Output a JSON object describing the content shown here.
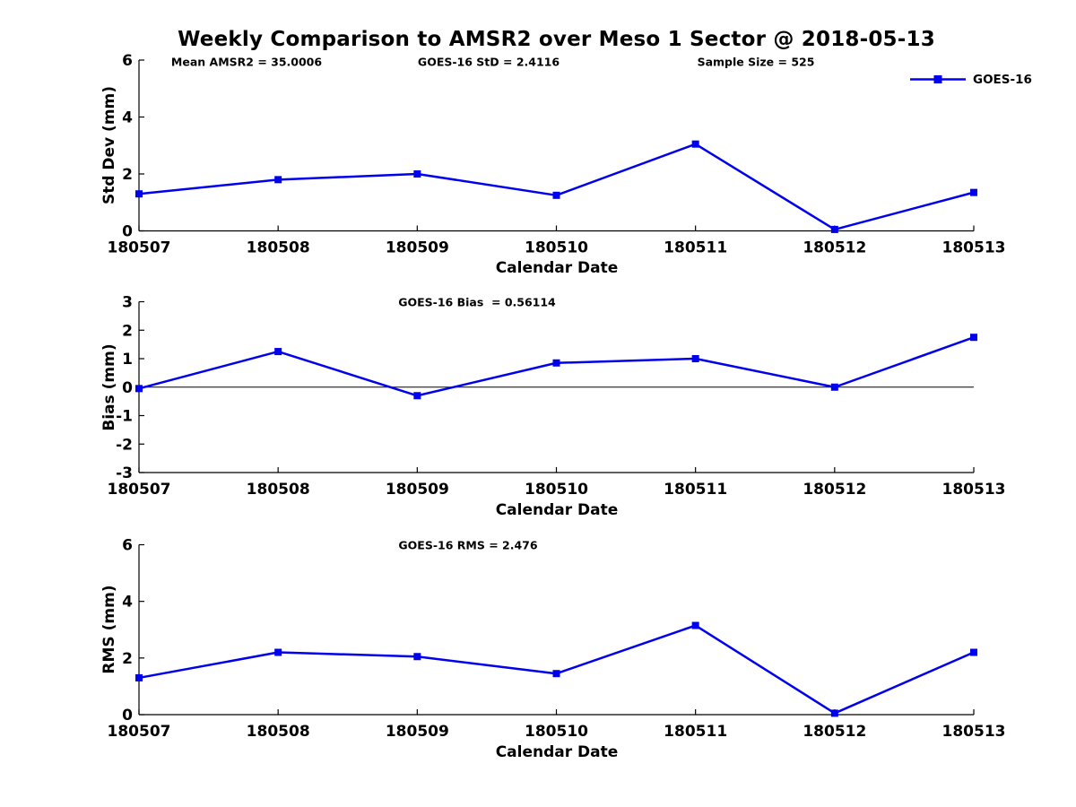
{
  "page": {
    "title": "Weekly Comparison to AMSR2 over Meso 1 Sector @ 2018-05-13"
  },
  "colors": {
    "series": "#0000EE",
    "axis": "#000000",
    "text": "#000000",
    "background": "#FFFFFF"
  },
  "legend": {
    "label": "GOES-16"
  },
  "chart_data": [
    {
      "type": "line",
      "title": "Std Dev subplot",
      "categories": [
        "180507",
        "180508",
        "180509",
        "180510",
        "180511",
        "180512",
        "180513"
      ],
      "series": [
        {
          "name": "GOES-16",
          "values": [
            1.3,
            1.8,
            2.0,
            1.25,
            3.05,
            0.05,
            1.35
          ]
        }
      ],
      "ylabel": "Std Dev (mm)",
      "xlabel": "Calendar Date",
      "ylim": [
        0,
        6
      ],
      "yticks": [
        0,
        2,
        4,
        6
      ],
      "annotations": [
        "Mean AMSR2 = 35.0006",
        "GOES-16 StD = 2.4116",
        "Sample Size = 525"
      ],
      "zero_line": false,
      "grid": false,
      "legend_position": "top-right"
    },
    {
      "type": "line",
      "title": "Bias subplot",
      "categories": [
        "180507",
        "180508",
        "180509",
        "180510",
        "180511",
        "180512",
        "180513"
      ],
      "series": [
        {
          "name": "GOES-16",
          "values": [
            -0.05,
            1.25,
            -0.3,
            0.85,
            1.0,
            0.0,
            1.75
          ]
        }
      ],
      "ylabel": "Bias (mm)",
      "xlabel": "Calendar Date",
      "ylim": [
        -3,
        3
      ],
      "yticks": [
        -3,
        -2,
        -1,
        0,
        1,
        2,
        3
      ],
      "annotations": [
        "GOES-16 Bias  = 0.56114"
      ],
      "zero_line": true,
      "grid": false,
      "legend_position": "none"
    },
    {
      "type": "line",
      "title": "RMS subplot",
      "categories": [
        "180507",
        "180508",
        "180509",
        "180510",
        "180511",
        "180512",
        "180513"
      ],
      "series": [
        {
          "name": "GOES-16",
          "values": [
            1.3,
            2.2,
            2.05,
            1.45,
            3.15,
            0.05,
            2.2
          ]
        }
      ],
      "ylabel": "RMS (mm)",
      "xlabel": "Calendar Date",
      "ylim": [
        0,
        6
      ],
      "yticks": [
        0,
        2,
        4,
        6
      ],
      "annotations": [
        "GOES-16 RMS = 2.476"
      ],
      "zero_line": false,
      "grid": false,
      "legend_position": "none"
    }
  ]
}
